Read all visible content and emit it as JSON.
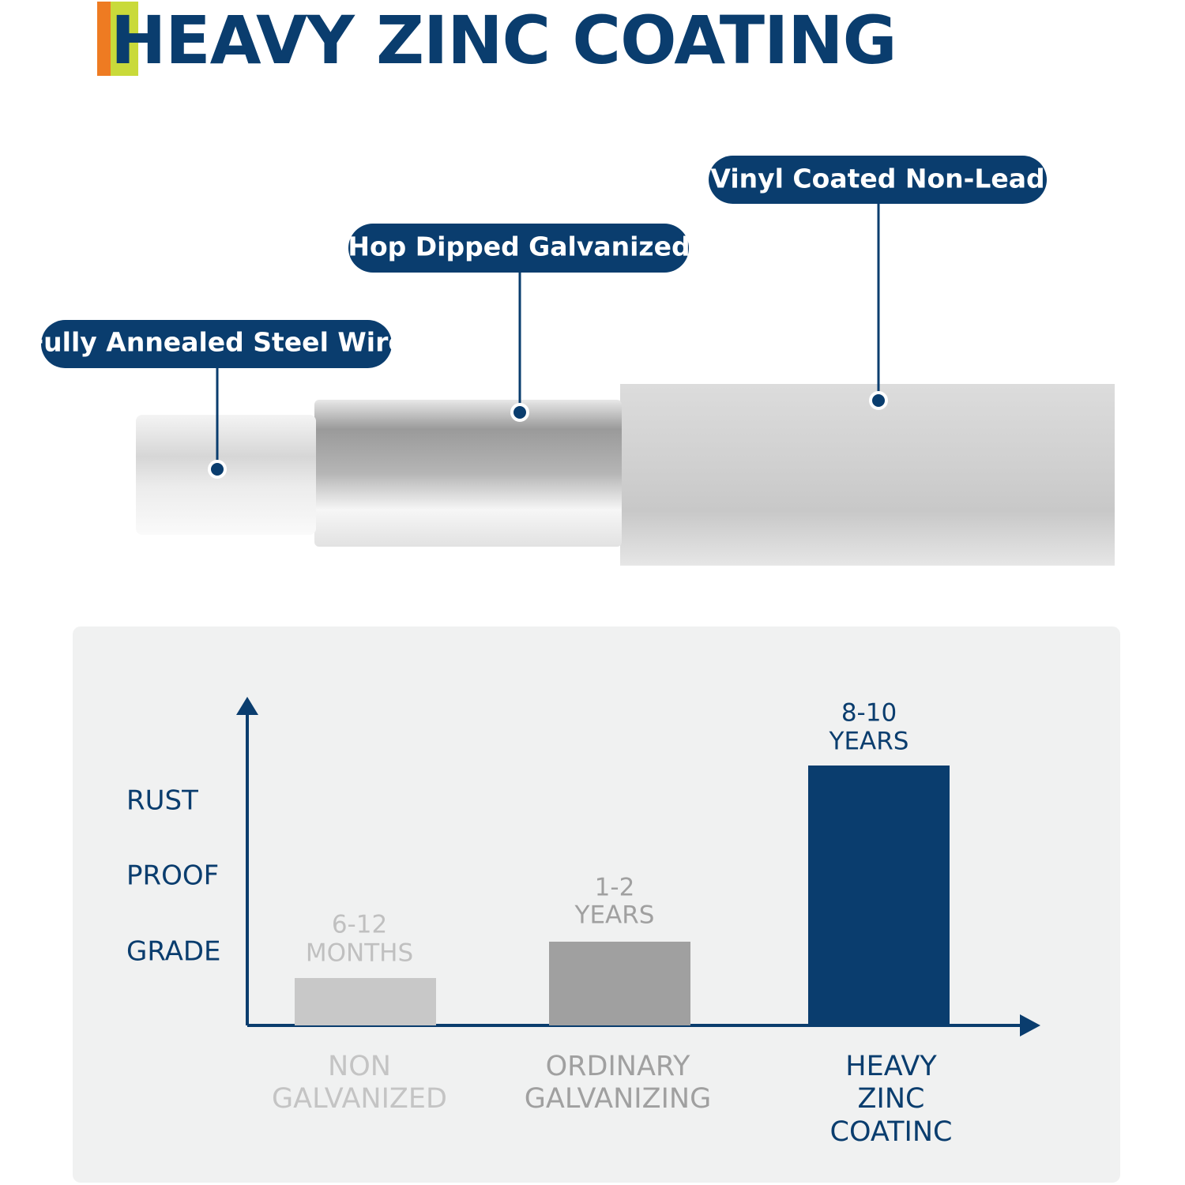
{
  "header": {
    "title": "HEAVY ZINC COATING"
  },
  "layers": [
    {
      "label": "Fully Annealed Steel Wire"
    },
    {
      "label": "Hop Dipped Galvanized"
    },
    {
      "label": "Vinyl Coated Non-Lead"
    }
  ],
  "comparison": {
    "axis_label": [
      "RUST",
      "PROOF",
      "GRADE"
    ],
    "items": [
      {
        "duration": [
          "6-12",
          "MONTHS"
        ],
        "name": [
          "NON",
          "GALVANIZED"
        ]
      },
      {
        "duration": [
          "1-2",
          "YEARS"
        ],
        "name": [
          "ORDINARY",
          "GALVANIZING"
        ]
      },
      {
        "duration": [
          "8-10",
          "YEARS"
        ],
        "name": [
          "HEAVY",
          "ZINC",
          "COATINC"
        ]
      }
    ]
  }
}
